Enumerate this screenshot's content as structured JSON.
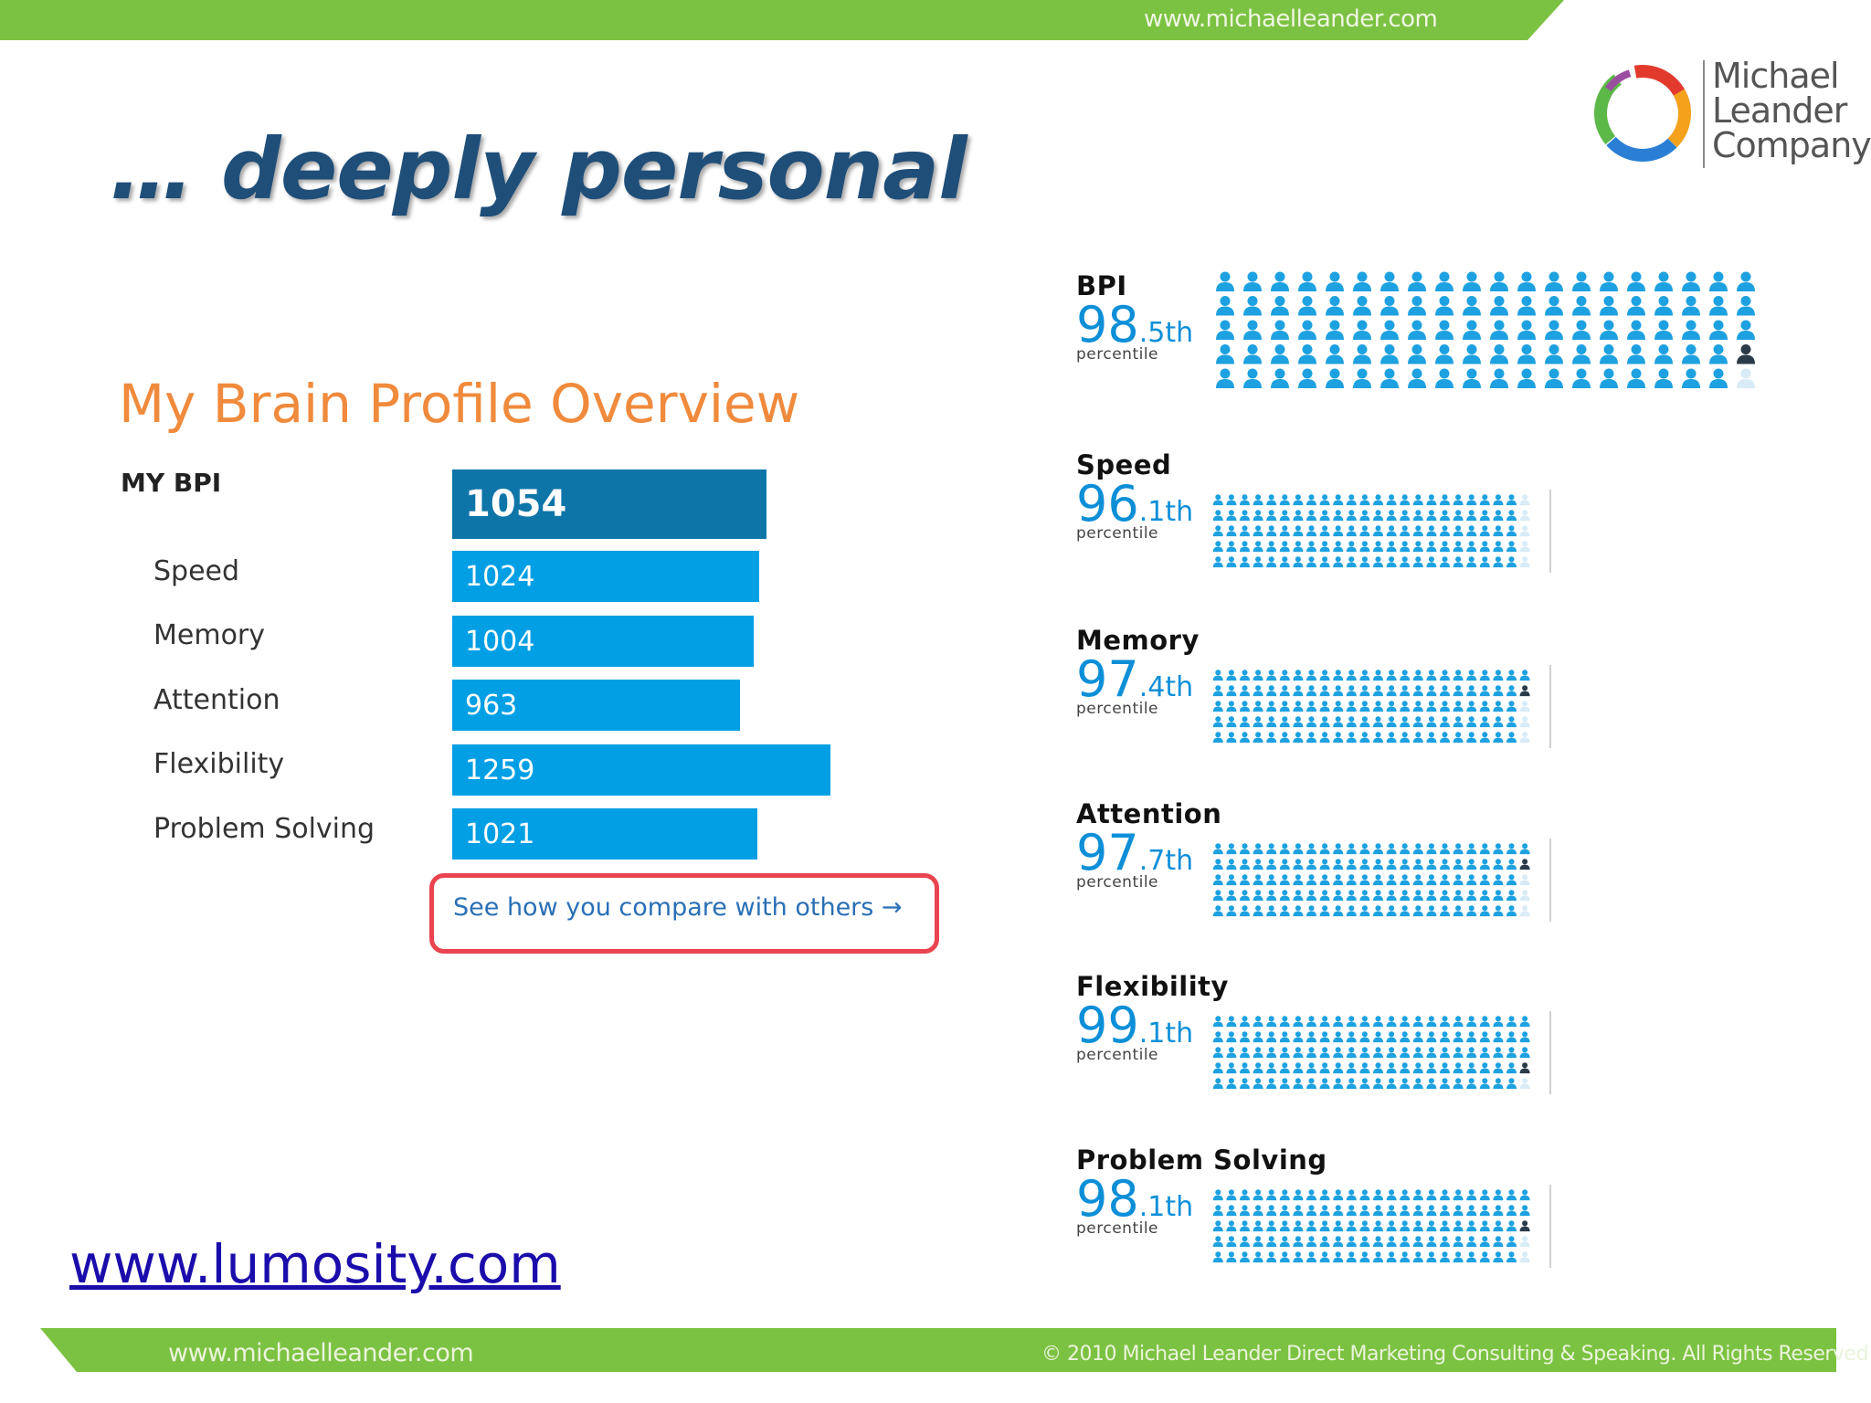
{
  "header": {
    "url": "www.michaelleander.com"
  },
  "logo": {
    "lines": [
      "Michael",
      "Leander",
      "Company"
    ]
  },
  "slide": {
    "title": "… deeply personal"
  },
  "overview": {
    "title": "My Brain Profile Overview",
    "bpi_label": "MY BPI",
    "bpi_value": "1054",
    "bpi_fraction": 0.82,
    "items": [
      {
        "label": "Speed",
        "value": "1024",
        "fraction": 0.8
      },
      {
        "label": "Memory",
        "value": "1004",
        "fraction": 0.785
      },
      {
        "label": "Attention",
        "value": "963",
        "fraction": 0.75
      },
      {
        "label": "Flexibility",
        "value": "1259",
        "fraction": 0.985
      },
      {
        "label": "Problem Solving",
        "value": "1021",
        "fraction": 0.795
      }
    ],
    "compare_link": "See how you compare with others →"
  },
  "percentiles": [
    {
      "name": "BPI",
      "whole": "98",
      "decimal": ".5th",
      "word": "percentile",
      "value": 98.5
    },
    {
      "name": "Speed",
      "whole": "96",
      "decimal": ".1th",
      "word": "percentile",
      "value": 96.1
    },
    {
      "name": "Memory",
      "whole": "97",
      "decimal": ".4th",
      "word": "percentile",
      "value": 97.4
    },
    {
      "name": "Attention",
      "whole": "97",
      "decimal": ".7th",
      "word": "percentile",
      "value": 97.7
    },
    {
      "name": "Flexibility",
      "whole": "99",
      "decimal": ".1th",
      "word": "percentile",
      "value": 99.1
    },
    {
      "name": "Problem Solving",
      "whole": "98",
      "decimal": ".1th",
      "word": "percentile",
      "value": 98.1
    }
  ],
  "footer": {
    "url": "www.michaelleander.com",
    "copyright": "© 2010 Michael Leander Direct Marketing Consulting & Speaking. All Rights Reserved"
  },
  "link": {
    "text": "www.lumosity.com"
  },
  "colors": {
    "band_green": "#7cc242",
    "title_blue": "#1f4e79",
    "overview_orange": "#f08a3c",
    "bar_dark": "#0e75a8",
    "bar_light": "#039fe5",
    "person_blue": "#1da1e0",
    "person_dark": "#2b3a48",
    "link_blue": "#1a0dab",
    "highlight_red": "#e9444f"
  }
}
